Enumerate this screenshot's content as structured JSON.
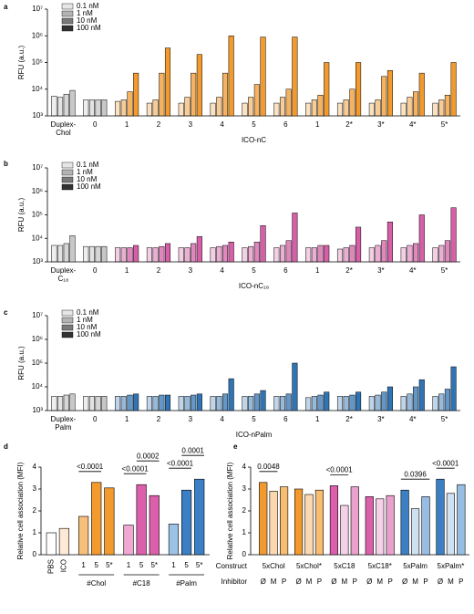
{
  "chart_data": [
    {
      "type": "grouped_bar",
      "panel": "a",
      "ylabel": "RFU (a.u.)",
      "xlabel": "ICO-nC",
      "log_scale": true,
      "ylim": [
        1000,
        10000000
      ],
      "yticks": [
        {
          "value": 1000,
          "label": "10³"
        },
        {
          "value": 10000,
          "label": "10⁴"
        },
        {
          "value": 100000,
          "label": "10⁵"
        },
        {
          "value": 1000000,
          "label": "10⁶"
        },
        {
          "value": 10000000,
          "label": "10⁷"
        }
      ],
      "categories": [
        "Duplex-Chol",
        "0",
        "1",
        "2",
        "3",
        "4",
        "5",
        "6",
        "1",
        "2*",
        "3*",
        "4*",
        "5*"
      ],
      "category_colors": [
        "#c8c8c8",
        "#c8c8c8",
        "#f29a2e",
        "#f29a2e",
        "#f29a2e",
        "#f29a2e",
        "#f29a2e",
        "#f29a2e",
        "#f29a2e",
        "#f29a2e",
        "#f29a2e",
        "#f29a2e",
        "#f29a2e"
      ],
      "series": [
        {
          "name": "0.1 nM",
          "color": "#e6e6e6",
          "values": [
            5500,
            4000,
            3500,
            3000,
            3000,
            3000,
            3000,
            3000,
            3000,
            3000,
            3000,
            3000,
            3000
          ]
        },
        {
          "name": "1 nM",
          "color": "#b4b4b4",
          "values": [
            5000,
            4000,
            4000,
            4000,
            5000,
            5000,
            5000,
            5000,
            4000,
            4000,
            4000,
            5000,
            4000
          ]
        },
        {
          "name": "10 nM",
          "color": "#7a7a7a",
          "values": [
            6500,
            4000,
            8000,
            40000,
            40000,
            40000,
            15000,
            10000,
            6000,
            10000,
            30000,
            8000,
            6000
          ]
        },
        {
          "name": "100 nM",
          "color": "#333333",
          "values": [
            9000,
            4000,
            40000,
            350000,
            200000,
            1000000,
            900000,
            900000,
            100000,
            100000,
            50000,
            40000,
            100000
          ]
        }
      ]
    },
    {
      "type": "grouped_bar",
      "panel": "b",
      "ylabel": "RFU (a.u.)",
      "xlabel": "ICO-nC₁₈",
      "log_scale": true,
      "ylim": [
        1000,
        10000000
      ],
      "yticks": [
        {
          "value": 1000,
          "label": "10³"
        },
        {
          "value": 10000,
          "label": "10⁴"
        },
        {
          "value": 100000,
          "label": "10⁵"
        },
        {
          "value": 1000000,
          "label": "10⁶"
        },
        {
          "value": 10000000,
          "label": "10⁷"
        }
      ],
      "categories": [
        "Duplex-C₁₈",
        "0",
        "1",
        "2",
        "3",
        "4",
        "5",
        "6",
        "1",
        "2*",
        "3*",
        "4*",
        "5*"
      ],
      "category_colors": [
        "#c8c8c8",
        "#c8c8c8",
        "#d65fa7",
        "#d65fa7",
        "#d65fa7",
        "#d65fa7",
        "#d65fa7",
        "#d65fa7",
        "#d65fa7",
        "#d65fa7",
        "#d65fa7",
        "#d65fa7",
        "#d65fa7"
      ],
      "series": [
        {
          "name": "0.1 nM",
          "color": "#e6e6e6",
          "values": [
            5000,
            4500,
            4000,
            4000,
            4000,
            4000,
            4000,
            4000,
            4000,
            3500,
            4000,
            4000,
            4000
          ]
        },
        {
          "name": "1 nM",
          "color": "#b4b4b4",
          "values": [
            5000,
            4500,
            4000,
            4000,
            4000,
            4500,
            4500,
            5000,
            4000,
            4000,
            5000,
            5000,
            5000
          ]
        },
        {
          "name": "10 nM",
          "color": "#7a7a7a",
          "values": [
            6000,
            4500,
            4000,
            4500,
            6000,
            5000,
            7000,
            8000,
            5000,
            5000,
            8000,
            6000,
            8000
          ]
        },
        {
          "name": "100 nM",
          "color": "#333333",
          "values": [
            13000,
            4500,
            5000,
            6000,
            12000,
            7000,
            35000,
            120000,
            5000,
            30000,
            50000,
            100000,
            200000
          ]
        }
      ]
    },
    {
      "type": "grouped_bar",
      "panel": "c",
      "ylabel": "RFU (a.u.)",
      "xlabel": "ICO-nPalm",
      "log_scale": true,
      "ylim": [
        1000,
        10000000
      ],
      "yticks": [
        {
          "value": 1000,
          "label": "10³"
        },
        {
          "value": 10000,
          "label": "10⁴"
        },
        {
          "value": 100000,
          "label": "10⁵"
        },
        {
          "value": 1000000,
          "label": "10⁶"
        },
        {
          "value": 10000000,
          "label": "10⁷"
        }
      ],
      "categories": [
        "Duplex-Palm",
        "0",
        "1",
        "2",
        "3",
        "4",
        "5",
        "6",
        "1",
        "2*",
        "3*",
        "4*",
        "5*"
      ],
      "category_colors": [
        "#c8c8c8",
        "#c8c8c8",
        "#2f74b5",
        "#2f74b5",
        "#2f74b5",
        "#2f74b5",
        "#2f74b5",
        "#2f74b5",
        "#2f74b5",
        "#2f74b5",
        "#2f74b5",
        "#2f74b5",
        "#2f74b5"
      ],
      "series": [
        {
          "name": "0.1 nM",
          "color": "#e6e6e6",
          "values": [
            4000,
            4000,
            4000,
            4000,
            4000,
            4000,
            4000,
            4000,
            3500,
            4000,
            4000,
            4000,
            4000
          ]
        },
        {
          "name": "1 nM",
          "color": "#b4b4b4",
          "values": [
            4000,
            4000,
            4000,
            4000,
            4000,
            4000,
            4000,
            4000,
            4000,
            4000,
            4500,
            5000,
            5000
          ]
        },
        {
          "name": "10 nM",
          "color": "#7a7a7a",
          "values": [
            4500,
            4000,
            4500,
            4500,
            4500,
            5000,
            5000,
            5000,
            4500,
            4500,
            6000,
            10000,
            8000
          ]
        },
        {
          "name": "100 nM",
          "color": "#333333",
          "values": [
            5000,
            4000,
            5000,
            4500,
            5000,
            22000,
            7000,
            100000,
            6000,
            6000,
            10000,
            20000,
            70000
          ]
        }
      ]
    },
    {
      "type": "bar",
      "panel": "d",
      "ylabel": "Relative cell association (MFI)",
      "ylim": [
        0,
        4
      ],
      "yticks": [
        0,
        1,
        2,
        3,
        4
      ],
      "categories": [
        "PBS",
        "ICO"
      ],
      "values": [
        1.0,
        1.2
      ],
      "colors": [
        "#ffffff",
        "#fde9d6"
      ],
      "groups": [
        {
          "name": "#Chol",
          "categories": [
            "1",
            "5",
            "5*"
          ],
          "values": [
            1.75,
            3.3,
            3.05
          ],
          "colors": [
            "#f7c07a",
            "#f29a2e",
            "#f29a2e"
          ],
          "comparisons": [
            {
              "pair": [
                0,
                1
              ],
              "label": "<0.0001"
            }
          ]
        },
        {
          "name": "#C18",
          "categories": [
            "1",
            "5",
            "5*"
          ],
          "values": [
            1.35,
            3.2,
            2.7
          ],
          "colors": [
            "#f0a8d3",
            "#db5fab",
            "#db5fab"
          ],
          "comparisons": [
            {
              "pair": [
                0,
                1
              ],
              "label": "<0.0001"
            },
            {
              "pair": [
                1,
                2
              ],
              "label": "0.0002"
            }
          ]
        },
        {
          "name": "#Palm",
          "categories": [
            "1",
            "5",
            "5*"
          ],
          "values": [
            1.4,
            2.95,
            3.45
          ],
          "colors": [
            "#9cc3e6",
            "#3b7fc4",
            "#3b7fc4"
          ],
          "comparisons": [
            {
              "pair": [
                0,
                1
              ],
              "label": "<0.0001"
            },
            {
              "pair": [
                1,
                2
              ],
              "label": "0.0001"
            }
          ]
        }
      ]
    },
    {
      "type": "bar",
      "panel": "e",
      "ylabel": "Relative cell association (MFI)",
      "construct_label": "Construct",
      "inhibitor_label": "Inhibitor",
      "ylim": [
        0,
        4
      ],
      "yticks": [
        0,
        1,
        2,
        3,
        4
      ],
      "groups": [
        {
          "name": "5xChol",
          "categories": [
            "Ø",
            "M",
            "P"
          ],
          "values": [
            3.3,
            2.9,
            3.1
          ],
          "colors": [
            "#f29a2e",
            "#fbd8ad",
            "#f7bd72"
          ],
          "comparisons": [
            {
              "pair": [
                0,
                1
              ],
              "label": "0.0048"
            }
          ]
        },
        {
          "name": "5xChol*",
          "categories": [
            "Ø",
            "M",
            "P"
          ],
          "values": [
            3.0,
            2.75,
            2.95
          ],
          "colors": [
            "#f29a2e",
            "#fbd8ad",
            "#f7bd72"
          ],
          "comparisons": []
        },
        {
          "name": "5xC18",
          "categories": [
            "Ø",
            "M",
            "P"
          ],
          "values": [
            3.15,
            2.25,
            3.1
          ],
          "colors": [
            "#db5fab",
            "#f6d0e6",
            "#eaa0cc"
          ],
          "comparisons": [
            {
              "pair": [
                0,
                1
              ],
              "label": "<0.0001"
            }
          ]
        },
        {
          "name": "5xC18*",
          "categories": [
            "Ø",
            "M",
            "P"
          ],
          "values": [
            2.65,
            2.55,
            2.7
          ],
          "colors": [
            "#db5fab",
            "#f6d0e6",
            "#eaa0cc"
          ],
          "comparisons": []
        },
        {
          "name": "5xPalm",
          "categories": [
            "Ø",
            "M",
            "P"
          ],
          "values": [
            2.95,
            2.1,
            2.65
          ],
          "colors": [
            "#3b7fc4",
            "#cfe0f2",
            "#98bde3"
          ],
          "comparisons": [
            {
              "pair": [
                0,
                2
              ],
              "label": "0.0396"
            }
          ]
        },
        {
          "name": "5xPalm*",
          "categories": [
            "Ø",
            "M",
            "P"
          ],
          "values": [
            3.45,
            2.8,
            3.2
          ],
          "colors": [
            "#3b7fc4",
            "#cfe0f2",
            "#98bde3"
          ],
          "comparisons": [
            {
              "pair": [
                0,
                1
              ],
              "label": "<0.0001"
            }
          ]
        }
      ]
    }
  ]
}
